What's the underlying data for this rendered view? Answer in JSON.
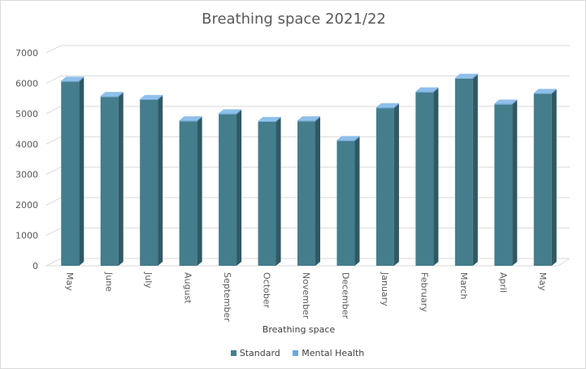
{
  "chart_data": {
    "type": "bar",
    "title": "Breathing space 2021/22",
    "xlabel": "Breathing space",
    "ylabel": "",
    "ylim": [
      0,
      7000
    ],
    "yticks": [
      0,
      1000,
      2000,
      3000,
      4000,
      5000,
      6000,
      7000
    ],
    "grid": true,
    "legend_position": "bottom",
    "categories": [
      "May",
      "June",
      "July",
      "August",
      "September",
      "October",
      "November",
      "December",
      "January",
      "February",
      "March",
      "April",
      "May"
    ],
    "series": [
      {
        "name": "Standard",
        "color": "#447d8c",
        "values": [
          6050,
          5550,
          5450,
          4750,
          4980,
          4730,
          4750,
          4100,
          5180,
          5700,
          6150,
          5300,
          5650
        ]
      },
      {
        "name": "Mental Health",
        "color": "#6fa8dc",
        "values": [
          30,
          30,
          30,
          30,
          30,
          30,
          30,
          30,
          30,
          30,
          30,
          30,
          30
        ]
      }
    ]
  }
}
